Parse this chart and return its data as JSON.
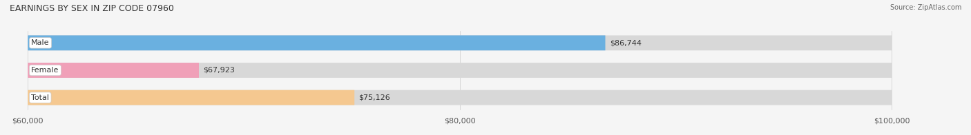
{
  "title": "EARNINGS BY SEX IN ZIP CODE 07960",
  "source": "Source: ZipAtlas.com",
  "categories": [
    "Male",
    "Female",
    "Total"
  ],
  "values": [
    86744,
    67923,
    75126
  ],
  "bar_colors": [
    "#6ab0e0",
    "#f0a0b8",
    "#f5c890"
  ],
  "bar_bg_color": "#e8e8e8",
  "label_bg_color": "#ffffff",
  "xlim_min": 60000,
  "xlim_max": 100000,
  "xticks": [
    60000,
    80000,
    100000
  ],
  "xtick_labels": [
    "$60,000",
    "$80,000",
    "$100,000"
  ],
  "value_labels": [
    "$86,744",
    "$67,923",
    "$75,126"
  ],
  "fig_width": 14.06,
  "fig_height": 1.96,
  "bg_color": "#f5f5f5",
  "bar_height": 0.55,
  "title_fontsize": 9,
  "tick_fontsize": 8,
  "label_fontsize": 8,
  "value_fontsize": 8
}
